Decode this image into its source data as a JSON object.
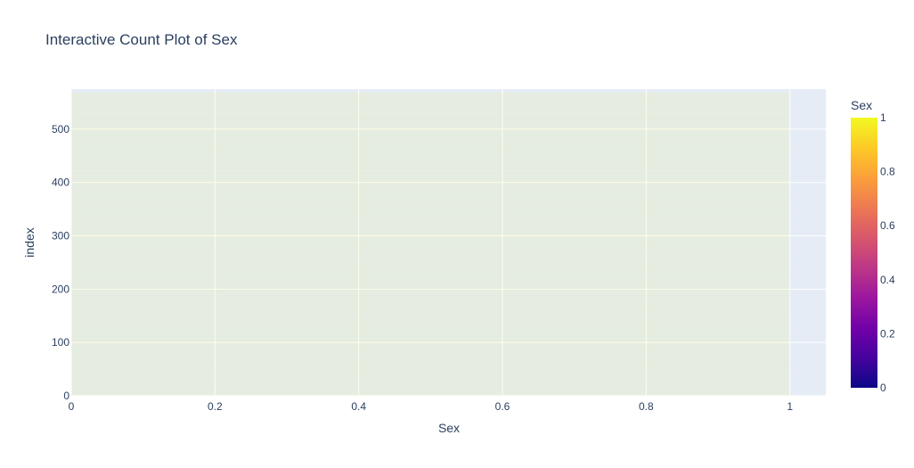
{
  "chart_data": {
    "type": "bar",
    "orientation": "h",
    "title": "Interactive Count Plot of Sex",
    "xlabel": "Sex",
    "ylabel": "index",
    "xlim": [
      0,
      1.05
    ],
    "ylim": [
      0,
      575
    ],
    "x_ticks": [
      "0",
      "0.2",
      "0.4",
      "0.6",
      "0.8",
      "1"
    ],
    "x_tick_values": [
      0,
      0.2,
      0.4,
      0.6,
      0.8,
      1
    ],
    "y_ticks": [
      "0",
      "100",
      "200",
      "300",
      "400",
      "500"
    ],
    "y_tick_values": [
      0,
      100,
      200,
      300,
      400,
      500
    ],
    "bar_count": 569,
    "bar_value": 1,
    "grid": true,
    "colorbar": {
      "title": "Sex",
      "range": [
        0,
        1
      ],
      "ticks": [
        "0",
        "0.2",
        "0.4",
        "0.6",
        "0.8",
        "1"
      ],
      "tick_values": [
        0,
        0.2,
        0.4,
        0.6,
        0.8,
        1
      ],
      "colorscale": [
        "#0d0887",
        "#46039f",
        "#7201a8",
        "#9c179e",
        "#bd3786",
        "#d8576b",
        "#ed7953",
        "#fb9f3a",
        "#fdca26",
        "#f0f921"
      ]
    },
    "colors": {
      "plot_bg": "#e5ecf6",
      "bar_color": "#f0f921",
      "bar_opacity": 0.12,
      "grid": "#ffffff"
    }
  }
}
